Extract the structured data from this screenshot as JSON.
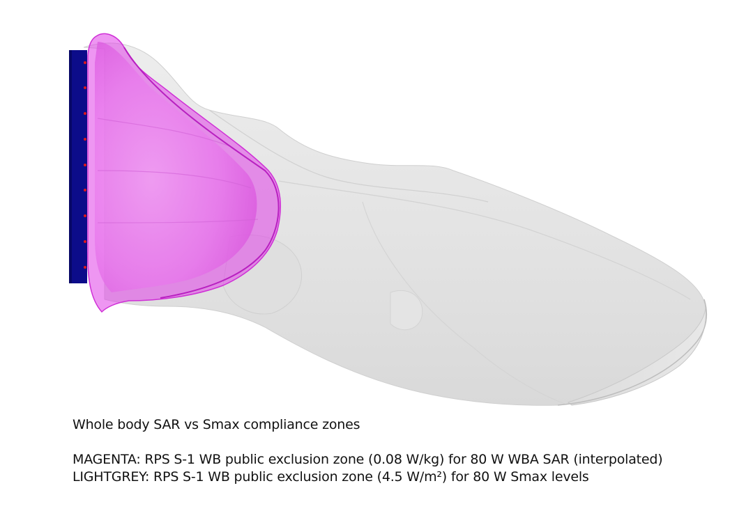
{
  "caption": {
    "title": "Whole body SAR vs Smax compliance zones",
    "magenta_line": "MAGENTA: RPS S-1 WB public exclusion zone (0.08 W/kg) for 80 W WBA SAR (interpolated)",
    "lightgrey_line": "LIGHTGREY: RPS S-1 WB public exclusion zone (4.5 W/m²) for 80 W Smax levels"
  },
  "colors": {
    "sar_zone": "#e040e8",
    "smax_zone": "#d9d9d9",
    "antenna_panel": "#0c0c8a",
    "antenna_elements": "#e01818",
    "background": "#ffffff"
  }
}
